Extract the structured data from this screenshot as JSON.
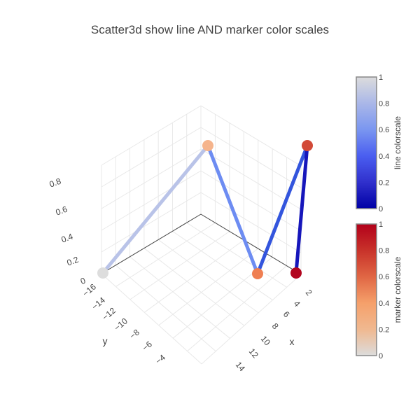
{
  "chart_data": {
    "type": "scatter3d",
    "title": "Scatter3d show line AND marker color scales",
    "mode": "lines+markers",
    "points": [
      {
        "x": 2,
        "y": -16,
        "z": 0,
        "line_value": 0.9,
        "marker_value": 0.05
      },
      {
        "x": 8,
        "y": -14,
        "z": 1,
        "line_value": 0.6,
        "marker_value": 0.3
      },
      {
        "x": 13,
        "y": -6,
        "z": 0,
        "line_value": 0.6,
        "marker_value": 0.55
      },
      {
        "x": 2,
        "y": -2,
        "z": 1,
        "line_value": 0.25,
        "marker_value": 0.85
      },
      {
        "x": 1,
        "y": -5,
        "z": 0,
        "line_value": 0.1,
        "marker_value": 1.0
      }
    ],
    "axes": {
      "x": {
        "label": "x",
        "ticks": [
          "2",
          "4",
          "6",
          "8",
          "10",
          "12",
          "14"
        ]
      },
      "y": {
        "label": "y",
        "ticks": [
          "−16",
          "−14",
          "−12",
          "−10",
          "−8",
          "−6",
          "−4"
        ]
      },
      "z": {
        "label": "",
        "ticks": [
          "0",
          "0.2",
          "0.4",
          "0.6",
          "0.8"
        ]
      }
    },
    "colorbars": [
      {
        "title": "line colorscale",
        "ticks": [
          "0",
          "0.2",
          "0.4",
          "0.6",
          "0.8",
          "1"
        ],
        "colors": [
          "#0000a5",
          "#3030cc",
          "#4a5ef0",
          "#7a96f0",
          "#aab7e8",
          "#dcdcdc"
        ]
      },
      {
        "title": "marker colorscale",
        "ticks": [
          "0",
          "0.2",
          "0.4",
          "0.6",
          "0.8",
          "1"
        ],
        "colors": [
          "#dcdcdc",
          "#f0b890",
          "#f5a06a",
          "#e06644",
          "#c8322a",
          "#b2001a"
        ]
      }
    ],
    "colors": {
      "line_segments": [
        "#b9c3e8",
        "#6d8cf2",
        "#3355dd",
        "#1616bb"
      ],
      "markers": [
        "#dddddd",
        "#f5b48c",
        "#ef7f52",
        "#d24a38",
        "#b2061f"
      ],
      "grid": "#e8e8e8",
      "axis_line": "#444444"
    }
  }
}
